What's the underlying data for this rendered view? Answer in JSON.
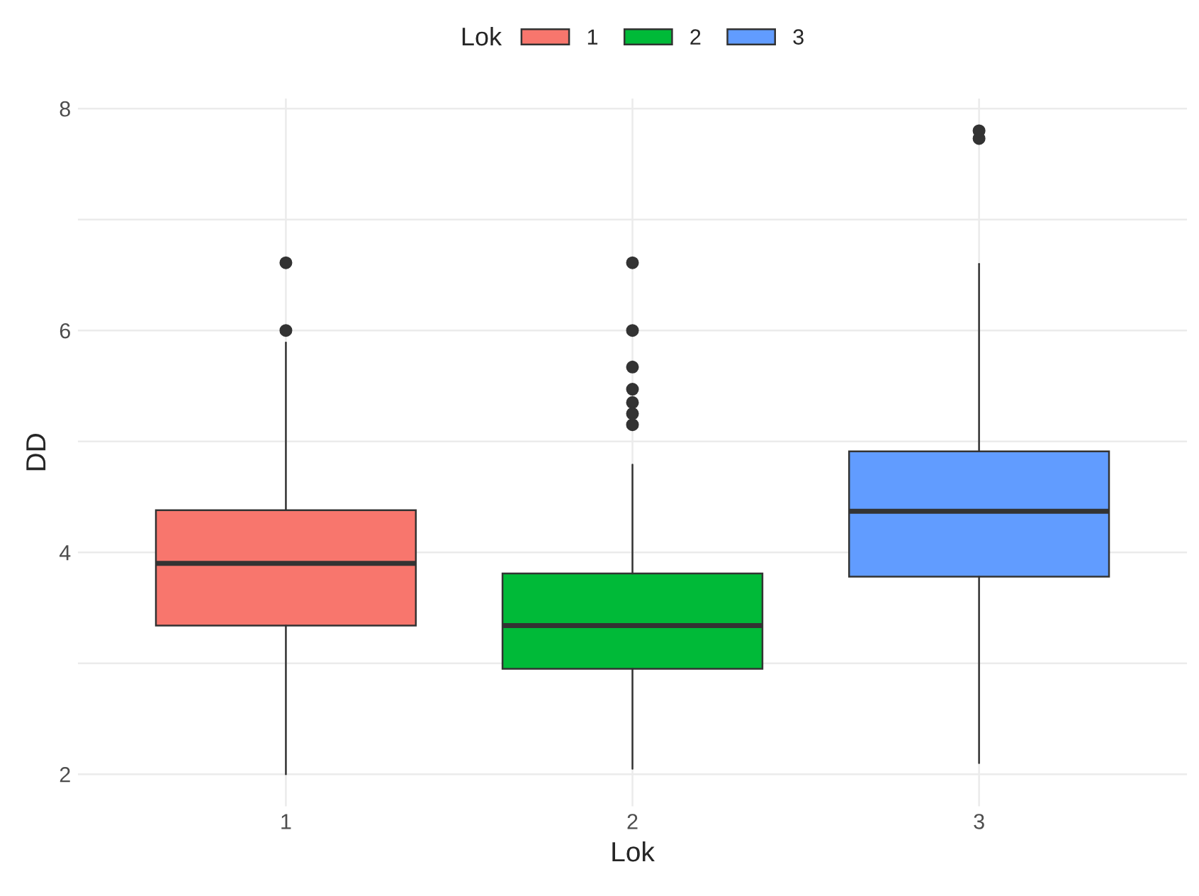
{
  "chart_data": {
    "type": "box",
    "xlabel": "Lok",
    "ylabel": "DD",
    "legend_title": "Lok",
    "categories": [
      "1",
      "2",
      "3"
    ],
    "series": [
      {
        "name": "1",
        "color": "#f8766d",
        "boxes": [
          {
            "low": 2.0,
            "q1": 3.34,
            "median": 3.9,
            "q3": 4.38,
            "high": 5.89,
            "outliers": [
              6.0,
              6.61
            ]
          },
          null,
          null
        ]
      },
      {
        "name": "2",
        "color": "#00ba38",
        "boxes": [
          null,
          {
            "low": 2.05,
            "q1": 2.95,
            "median": 3.34,
            "q3": 3.81,
            "high": 4.79,
            "outliers": [
              5.15,
              5.25,
              5.35,
              5.47,
              5.67,
              6.0,
              6.61
            ]
          },
          null
        ]
      },
      {
        "name": "3",
        "color": "#619cff",
        "boxes": [
          null,
          null,
          {
            "low": 2.1,
            "q1": 3.78,
            "median": 4.37,
            "q3": 4.91,
            "high": 6.6,
            "outliers": [
              7.73,
              7.8
            ]
          }
        ]
      }
    ],
    "ylim": [
      1.71,
      8.09
    ],
    "yticks": [
      2,
      {
        "value": 3,
        "label": null
      },
      4,
      {
        "value": 5,
        "label": null
      },
      6,
      {
        "value": 7,
        "label": null
      },
      8
    ],
    "grid": true,
    "legend": "top"
  }
}
